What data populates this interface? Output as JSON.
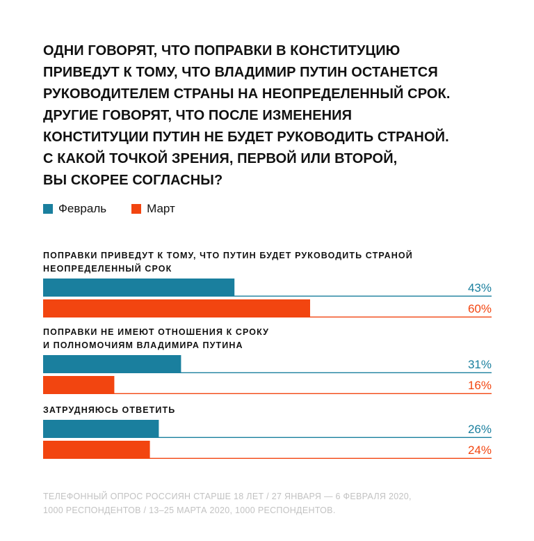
{
  "title_lines": [
    "ОДНИ ГОВОРЯТ, ЧТО ПОПРАВКИ В КОНСТИТУЦИЮ",
    "ПРИВЕДУТ К ТОМУ, ЧТО ВЛАДИМИР ПУТИН ОСТАНЕТСЯ",
    "РУКОВОДИТЕЛЕМ СТРАНЫ НА НЕОПРЕДЕЛЕННЫЙ СРОК.",
    "ДРУГИЕ ГОВОРЯТ, ЧТО ПОСЛЕ ИЗМЕНЕНИЯ",
    "КОНСТИТУЦИИ ПУТИН НЕ БУДЕТ РУКОВОДИТЬ СТРАНОЙ.",
    "С КАКОЙ ТОЧКОЙ ЗРЕНИЯ, ПЕРВОЙ ИЛИ ВТОРОЙ,",
    "ВЫ СКОРЕЕ СОГЛАСНЫ?"
  ],
  "legend": [
    {
      "label": "Февраль",
      "color": "#1a7f9e"
    },
    {
      "label": "Март",
      "color": "#f24510"
    }
  ],
  "chart_data": {
    "type": "bar",
    "orientation": "horizontal",
    "categories": [
      [
        "ПОПРАВКИ ПРИВЕДУТ К ТОМУ, ЧТО ПУТИН БУДЕТ РУКОВОДИТЬ СТРАНОЙ",
        "НЕОПРЕДЕЛЕННЫЙ СРОК"
      ],
      [
        "ПОПРАВКИ НЕ ИМЕЮТ ОТНОШЕНИЯ К СРОКУ",
        "И ПОЛНОМОЧИЯМ ВЛАДИМИРА ПУТИНА"
      ],
      [
        "ЗАТРУДНЯЮСЬ ОТВЕТИТЬ"
      ]
    ],
    "series": [
      {
        "name": "Февраль",
        "color": "#1a7f9e",
        "values": [
          43,
          31,
          26
        ],
        "value_labels": [
          "43%",
          "31%",
          "26%"
        ]
      },
      {
        "name": "Март",
        "color": "#f24510",
        "values": [
          60,
          16,
          24
        ],
        "value_labels": [
          "60%",
          "16%",
          "24%"
        ]
      }
    ],
    "xlim": [
      0,
      100
    ]
  },
  "footnote_lines": [
    "ТЕЛЕФОННЫЙ ОПРОС РОССИЯН СТАРШЕ 18 ЛЕТ / 27 ЯНВАРЯ — 6 ФЕВРАЛЯ 2020,",
    "1000 РЕСПОНДЕНТОВ / 13–25 МАРТА 2020, 1000 РЕСПОНДЕНТОВ."
  ]
}
